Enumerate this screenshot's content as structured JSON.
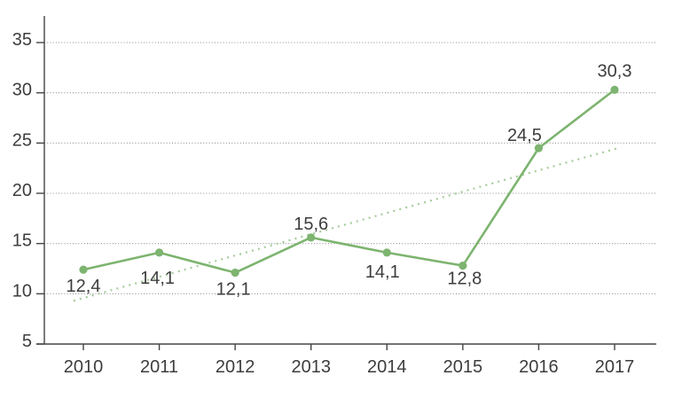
{
  "chart_data": {
    "type": "line",
    "title": "",
    "xlabel": "",
    "ylabel": "",
    "categories": [
      "2010",
      "2011",
      "2012",
      "2013",
      "2014",
      "2015",
      "2016",
      "2017"
    ],
    "series": [
      {
        "name": "value",
        "values": [
          12.4,
          14.1,
          12.1,
          15.6,
          14.1,
          12.8,
          24.5,
          30.3
        ]
      }
    ],
    "point_labels": [
      "12,4",
      "14,1",
      "12,1",
      "15,6",
      "14,1",
      "12,8",
      "24,5",
      "30,3"
    ],
    "decimal_separator": ",",
    "yticks": [
      5,
      10,
      15,
      20,
      25,
      30,
      35
    ],
    "ylim": [
      5,
      35
    ],
    "grid": "horizontal-dotted",
    "legend": "none",
    "trendline": {
      "type": "linear",
      "style": "dotted"
    },
    "colors": {
      "line": "#7db46f",
      "marker": "#7db46f",
      "trend": "#a5cc98",
      "grid": "#8f8f8f",
      "axis": "#454545",
      "text": "#3d3d3d",
      "background": "#ffffff"
    }
  }
}
